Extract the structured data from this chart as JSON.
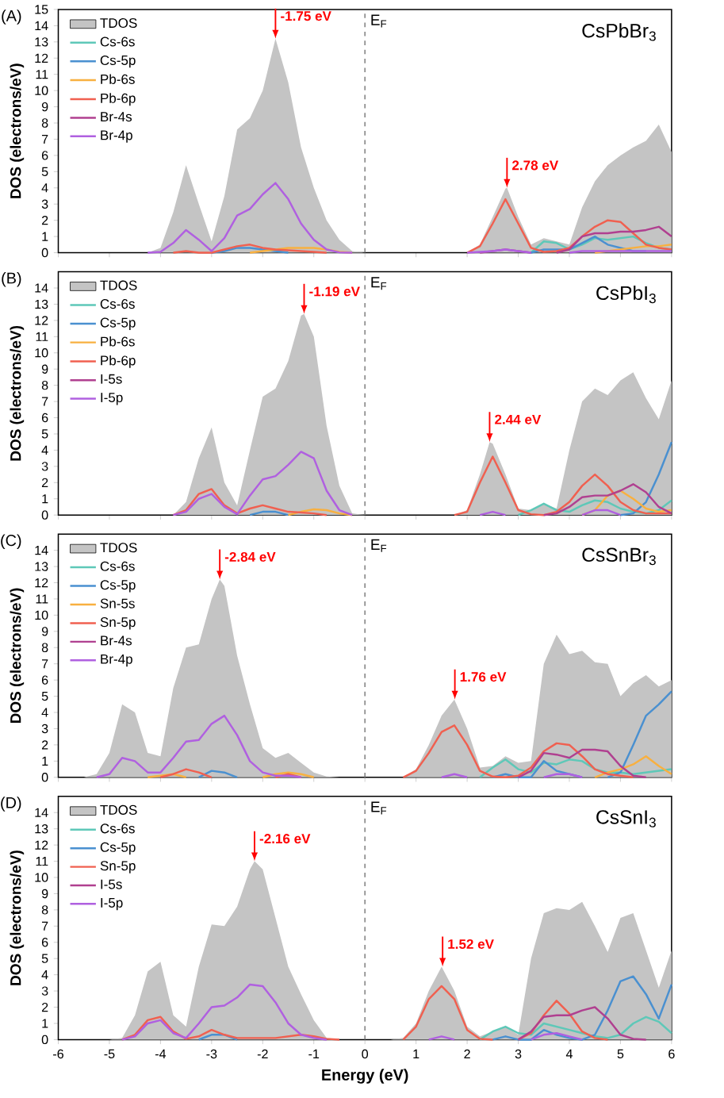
{
  "chart_data": [
    {
      "type": "line",
      "title": "CsPbBr$_{3}$",
      "ylabel": "DOS (electrons/eV)",
      "annotations": [
        "(A)",
        {
          "text": "-1.75 eV",
          "x": -1.75,
          "y": 13.2
        },
        {
          "text": "2.78 eV",
          "x": 2.78,
          "y": 4.0
        }
      ],
      "ref_lines": [
        {
          "axis": "x",
          "value": 0,
          "label": "E$_{F}$",
          "line_style": "dashed",
          "color": "#808080"
        }
      ],
      "xlim": [
        -6,
        6
      ],
      "ylim": [
        0,
        15
      ],
      "xticks": [
        -6,
        -5,
        -4,
        -3,
        -2,
        -1,
        0,
        1,
        2,
        3,
        4,
        5,
        6
      ],
      "yticks": [
        0,
        1,
        2,
        3,
        4,
        5,
        6,
        7,
        8,
        9,
        10,
        11,
        12,
        13,
        14,
        15
      ],
      "tick_labels": "y",
      "legend": "top left",
      "x": [
        -4.25,
        -4,
        -3.75,
        -3.5,
        -3.25,
        -3,
        -2.75,
        -2.5,
        -2.25,
        -2,
        -1.75,
        -1.5,
        -1.25,
        -1,
        -0.75,
        -0.5,
        -0.25,
        0,
        0.25,
        0.5,
        0.75,
        1,
        1.25,
        1.5,
        1.75,
        2,
        2.25,
        2.5,
        2.75,
        3,
        3.25,
        3.5,
        3.75,
        4,
        4.25,
        4.5,
        4.75,
        5,
        5.25,
        5.5,
        5.75,
        6
      ],
      "series": [
        {
          "name": "TDOS",
          "type": "area",
          "color": "#c4c4c4",
          "x": [
            -6,
            -5.75,
            -5.5,
            -5.25,
            -5,
            -4.75,
            -4.5,
            -4.25,
            -4,
            -3.75,
            -3.5,
            -3.25,
            -3,
            -2.75,
            -2.5,
            -2.25,
            -2,
            -1.75,
            -1.5,
            -1.25,
            -1,
            -0.75,
            -0.5,
            -0.25,
            0,
            0.25,
            0.5,
            0.75,
            1,
            1.25,
            1.5,
            1.75,
            2,
            2.25,
            2.5,
            2.75,
            2.78,
            3,
            3.25,
            3.5,
            3.75,
            4,
            4.25,
            4.5,
            4.75,
            5,
            5.25,
            5.5,
            5.75,
            6
          ],
          "values": [
            0,
            0,
            0,
            0,
            0,
            0,
            0,
            0,
            0.3,
            2.5,
            5.4,
            3.0,
            0.7,
            3.5,
            7.6,
            8.3,
            10.0,
            13.2,
            10.5,
            6.5,
            4.0,
            2.0,
            0.8,
            0.1,
            0,
            0,
            0,
            0,
            0,
            0,
            0,
            0,
            0,
            0.5,
            2.2,
            3.95,
            4.0,
            2.2,
            0.5,
            0.9,
            0.7,
            0.5,
            2.8,
            4.4,
            5.4,
            6.0,
            6.5,
            6.9,
            7.9,
            6.2
          ]
        },
        {
          "name": "Cs-6s",
          "color": "#5ec8b8",
          "values": [
            null,
            null,
            null,
            null,
            null,
            null,
            null,
            null,
            null,
            null,
            null,
            null,
            null,
            null,
            null,
            null,
            null,
            null,
            null,
            null,
            null,
            null,
            null,
            null,
            null,
            null,
            null,
            null,
            null,
            null,
            0,
            0.7,
            0.6,
            0.2,
            0.5,
            0.9,
            0.8,
            0.9,
            1.0,
            0.6,
            0.3,
            0.2
          ]
        },
        {
          "name": "Cs-5p",
          "color": "#4a90d0",
          "values": [
            null,
            null,
            null,
            null,
            null,
            0,
            0.1,
            0.3,
            0.3,
            0.2,
            0.1,
            0,
            null,
            null,
            null,
            null,
            null,
            null,
            null,
            null,
            null,
            null,
            null,
            null,
            null,
            null,
            null,
            null,
            null,
            null,
            0,
            0.2,
            0.2,
            0.2,
            0.6,
            1.0,
            0.5,
            0.3,
            0.1,
            0.1,
            null,
            null
          ]
        },
        {
          "name": "Pb-6s",
          "color": "#f8b040",
          "values": [
            null,
            null,
            null,
            null,
            null,
            null,
            null,
            null,
            0,
            0.1,
            0.2,
            0.3,
            0.3,
            0.3,
            0.2,
            0.05,
            0,
            null,
            null,
            null,
            null,
            null,
            null,
            null,
            null,
            null,
            null,
            null,
            null,
            null,
            null,
            null,
            null,
            null,
            null,
            0,
            0.1,
            0.2,
            0.3,
            0.4,
            0.4,
            0.5
          ]
        },
        {
          "name": "Pb-6p",
          "color": "#f06050",
          "values": [
            null,
            null,
            0,
            0.1,
            0,
            0,
            0.2,
            0.4,
            0.5,
            0.3,
            0.2,
            0.15,
            0.1,
            0.05,
            0,
            null,
            null,
            null,
            null,
            null,
            null,
            null,
            null,
            null,
            null,
            0,
            0.4,
            1.8,
            3.3,
            1.8,
            0.3,
            0.05,
            0.1,
            0.3,
            1.0,
            1.6,
            2.0,
            1.9,
            1.2,
            0.5,
            0.3,
            0.2
          ]
        },
        {
          "name": "Br-4s",
          "color": "#b04090",
          "values": [
            null,
            null,
            null,
            null,
            null,
            null,
            null,
            null,
            null,
            null,
            null,
            null,
            null,
            null,
            null,
            null,
            null,
            null,
            null,
            null,
            null,
            null,
            null,
            null,
            null,
            null,
            0,
            0.1,
            0.2,
            0.1,
            0,
            null,
            0,
            0.2,
            1.0,
            1.2,
            1.2,
            1.3,
            1.3,
            1.4,
            1.6,
            1.0
          ]
        },
        {
          "name": "Br-4p",
          "color": "#b060e0",
          "values": [
            0,
            0.05,
            0.6,
            1.4,
            0.8,
            0.1,
            0.9,
            2.3,
            2.7,
            3.6,
            4.3,
            3.3,
            1.8,
            0.8,
            0.2,
            0.02,
            0,
            null,
            null,
            null,
            null,
            null,
            null,
            null,
            null,
            0,
            0.05,
            0.1,
            0.2,
            0.1,
            0,
            null,
            null,
            0,
            0.1,
            0.1,
            0.1,
            0.1,
            0.1,
            0.1,
            0.1,
            0.1
          ]
        }
      ]
    },
    {
      "type": "line",
      "title": "CsPbI$_{3}$",
      "ylabel": "DOS (electrons/eV)",
      "annotations": [
        "(B)",
        {
          "text": "-1.19 eV",
          "x": -1.19,
          "y": 12.4
        },
        {
          "text": "2.44 eV",
          "x": 2.44,
          "y": 4.5
        }
      ],
      "ref_lines": [
        {
          "axis": "x",
          "value": 0,
          "label": "E$_{F}$",
          "line_style": "dashed",
          "color": "#808080"
        }
      ],
      "xlim": [
        -6,
        6
      ],
      "ylim": [
        0,
        15
      ],
      "xticks": [
        -6,
        -5,
        -4,
        -3,
        -2,
        -1,
        0,
        1,
        2,
        3,
        4,
        5,
        6
      ],
      "yticks": [
        0,
        1,
        2,
        3,
        4,
        5,
        6,
        7,
        8,
        9,
        10,
        11,
        12,
        13,
        14
      ],
      "tick_labels": "y",
      "legend": "top left",
      "x": [
        -3.75,
        -3.5,
        -3.25,
        -3,
        -2.75,
        -2.5,
        -2.25,
        -2,
        -1.75,
        -1.5,
        -1.25,
        -1,
        -0.75,
        -0.5,
        -0.25,
        0,
        0.25,
        0.5,
        0.75,
        1,
        1.25,
        1.5,
        1.75,
        2,
        2.25,
        2.5,
        2.75,
        3,
        3.25,
        3.5,
        3.75,
        4,
        4.25,
        4.5,
        4.75,
        5,
        5.25,
        5.5,
        5.75,
        6
      ],
      "series": [
        {
          "name": "TDOS",
          "type": "area",
          "color": "#c4c4c4",
          "x": [
            -6,
            -5.75,
            -5.5,
            -5.25,
            -5,
            -4.75,
            -4.5,
            -4.25,
            -4,
            -3.75,
            -3.5,
            -3.25,
            -3,
            -2.75,
            -2.5,
            -2.25,
            -2,
            -1.75,
            -1.5,
            -1.25,
            -1.19,
            -1,
            -0.75,
            -0.5,
            -0.25,
            0,
            0.25,
            0.5,
            0.75,
            1,
            1.25,
            1.5,
            1.75,
            2,
            2.25,
            2.44,
            2.5,
            2.75,
            3,
            3.25,
            3.5,
            3.75,
            4,
            4.25,
            4.5,
            4.75,
            5,
            5.25,
            5.5,
            5.75,
            6
          ],
          "values": [
            0,
            0,
            0,
            0,
            0,
            0,
            0,
            0,
            0,
            0,
            0.8,
            3.5,
            5.4,
            2.0,
            0.6,
            4.0,
            7.3,
            7.8,
            9.5,
            12.3,
            12.4,
            11.0,
            5.5,
            1.8,
            0.1,
            0,
            0,
            0,
            0,
            0,
            0,
            0,
            0,
            0.3,
            2.5,
            4.5,
            4.4,
            2.5,
            0.4,
            0.3,
            0.7,
            0.4,
            4.0,
            7.0,
            7.8,
            7.4,
            8.3,
            8.8,
            7.2,
            5.9,
            8.3
          ]
        },
        {
          "name": "Cs-6s",
          "color": "#5ec8b8",
          "values": [
            null,
            null,
            null,
            null,
            null,
            null,
            null,
            null,
            null,
            null,
            null,
            null,
            null,
            null,
            null,
            null,
            null,
            null,
            null,
            null,
            null,
            null,
            null,
            null,
            null,
            null,
            null,
            0,
            0.3,
            0.7,
            0.3,
            0.2,
            0.6,
            0.9,
            0.8,
            0.4,
            0.2,
            0.1,
            0.3,
            0.9
          ]
        },
        {
          "name": "Cs-5p",
          "color": "#4a90d0",
          "values": [
            null,
            null,
            null,
            null,
            null,
            null,
            0,
            0.2,
            0.2,
            0,
            null,
            null,
            null,
            null,
            null,
            null,
            null,
            null,
            null,
            null,
            null,
            null,
            null,
            null,
            null,
            null,
            null,
            null,
            null,
            null,
            null,
            null,
            null,
            null,
            null,
            0,
            0.1,
            0.8,
            2.5,
            4.5
          ]
        },
        {
          "name": "Pb-6s",
          "color": "#f8b040",
          "values": [
            null,
            null,
            null,
            null,
            null,
            null,
            null,
            null,
            null,
            0,
            0.2,
            0.35,
            0.3,
            0.1,
            0,
            null,
            null,
            null,
            null,
            null,
            null,
            null,
            null,
            null,
            null,
            null,
            null,
            null,
            null,
            null,
            null,
            null,
            0,
            0.3,
            1.2,
            1.5,
            1.0,
            0.4,
            0.2,
            0.3
          ]
        },
        {
          "name": "Pb-6p",
          "color": "#f06050",
          "values": [
            0,
            0.3,
            1.3,
            1.6,
            0.6,
            0.1,
            0.4,
            0.6,
            0.4,
            0.2,
            0.15,
            0.1,
            0,
            null,
            null,
            null,
            null,
            null,
            null,
            null,
            null,
            null,
            0,
            0.2,
            2.0,
            3.6,
            2.0,
            0.3,
            0.05,
            0,
            0.2,
            0.8,
            1.8,
            2.5,
            1.8,
            0.8,
            0.3,
            0.1,
            0.1,
            0.1
          ]
        },
        {
          "name": "I-5s",
          "color": "#b04090",
          "values": [
            null,
            null,
            null,
            null,
            null,
            null,
            null,
            null,
            null,
            null,
            null,
            null,
            null,
            null,
            null,
            null,
            null,
            null,
            null,
            null,
            null,
            null,
            null,
            null,
            null,
            null,
            null,
            null,
            null,
            0,
            0.1,
            0.5,
            1.1,
            1.2,
            1.2,
            1.5,
            1.9,
            1.4,
            0.5,
            0.1
          ]
        },
        {
          "name": "I-5p",
          "color": "#b060e0",
          "values": [
            0,
            0.2,
            1.0,
            1.3,
            0.5,
            0.05,
            1.2,
            2.2,
            2.4,
            3.1,
            3.9,
            3.5,
            1.5,
            0.3,
            0,
            null,
            null,
            null,
            null,
            null,
            null,
            null,
            null,
            null,
            0,
            0.2,
            0,
            null,
            null,
            null,
            null,
            null,
            0,
            0.3,
            0.3,
            0,
            null,
            null,
            null,
            null
          ]
        }
      ]
    },
    {
      "type": "line",
      "title": "CsSnBr$_{3}$",
      "ylabel": "DOS (electrons/eV)",
      "annotations": [
        "(C)",
        {
          "text": "-2.84 eV",
          "x": -2.84,
          "y": 12.2
        },
        {
          "text": "1.76 eV",
          "x": 1.76,
          "y": 4.8
        }
      ],
      "ref_lines": [
        {
          "axis": "x",
          "value": 0,
          "label": "E$_{F}$",
          "line_style": "dashed",
          "color": "#808080"
        }
      ],
      "xlim": [
        -6,
        6
      ],
      "ylim": [
        0,
        15
      ],
      "xticks": [
        -6,
        -5,
        -4,
        -3,
        -2,
        -1,
        0,
        1,
        2,
        3,
        4,
        5,
        6
      ],
      "yticks": [
        0,
        1,
        2,
        3,
        4,
        5,
        6,
        7,
        8,
        9,
        10,
        11,
        12,
        13,
        14
      ],
      "tick_labels": "y",
      "legend": "top left",
      "x": [
        -5.25,
        -5,
        -4.75,
        -4.5,
        -4.25,
        -4,
        -3.75,
        -3.5,
        -3.25,
        -3,
        -2.75,
        -2.5,
        -2.25,
        -2,
        -1.75,
        -1.5,
        -1.25,
        -1,
        -0.75,
        -0.5,
        -0.25,
        0,
        0.25,
        0.5,
        0.75,
        1,
        1.25,
        1.5,
        1.75,
        2,
        2.25,
        2.5,
        2.75,
        3,
        3.25,
        3.5,
        3.75,
        4,
        4.25,
        4.5,
        4.75,
        5,
        5.25,
        5.5,
        5.75,
        6
      ],
      "series": [
        {
          "name": "TDOS",
          "type": "area",
          "color": "#c4c4c4",
          "x": [
            -6,
            -5.75,
            -5.5,
            -5.25,
            -5,
            -4.75,
            -4.5,
            -4.25,
            -4,
            -3.75,
            -3.5,
            -3.25,
            -3,
            -2.84,
            -2.75,
            -2.5,
            -2.25,
            -2,
            -1.75,
            -1.5,
            -1.25,
            -1,
            -0.75,
            -0.5,
            -0.25,
            0,
            0.25,
            0.5,
            0.75,
            1,
            1.25,
            1.5,
            1.75,
            2,
            2.25,
            2.5,
            2.75,
            3,
            3.25,
            3.5,
            3.75,
            4,
            4.25,
            4.5,
            4.75,
            5,
            5.25,
            5.5,
            5.75,
            6
          ],
          "values": [
            0,
            0,
            0,
            0.2,
            1.5,
            4.5,
            4.0,
            1.5,
            1.3,
            5.5,
            8.0,
            8.2,
            11.0,
            12.2,
            11.8,
            7.5,
            4.5,
            1.8,
            1.2,
            1.5,
            0.9,
            0.3,
            0.05,
            0,
            0,
            0,
            0,
            0,
            0,
            0.5,
            2.0,
            3.8,
            4.8,
            3.0,
            0.6,
            0.7,
            1.3,
            0.9,
            1.0,
            7.0,
            8.8,
            7.6,
            7.8,
            7.1,
            7.0,
            5.0,
            5.8,
            6.3,
            5.6,
            6.0
          ]
        },
        {
          "name": "Cs-6s",
          "color": "#5ec8b8",
          "values": [
            null,
            null,
            null,
            null,
            null,
            null,
            null,
            null,
            null,
            null,
            null,
            null,
            null,
            null,
            null,
            null,
            null,
            null,
            null,
            null,
            null,
            null,
            null,
            null,
            null,
            null,
            null,
            null,
            null,
            null,
            0,
            0.6,
            1.1,
            0.5,
            0.3,
            0.9,
            0.8,
            1.1,
            1.0,
            0.5,
            0.3,
            0.3,
            0.2,
            0.3,
            0.4,
            0.5
          ]
        },
        {
          "name": "Cs-5p",
          "color": "#4a90d0",
          "values": [
            null,
            null,
            null,
            null,
            null,
            null,
            null,
            null,
            0,
            0.4,
            0.3,
            0,
            null,
            null,
            null,
            null,
            null,
            null,
            null,
            null,
            null,
            null,
            null,
            null,
            null,
            null,
            null,
            null,
            null,
            null,
            null,
            0,
            0.2,
            0,
            0,
            1.0,
            0.4,
            0.2,
            0,
            null,
            0,
            0.3,
            2.0,
            3.8,
            4.5,
            5.3
          ]
        },
        {
          "name": "Sn-5s",
          "color": "#f8b040",
          "values": [
            null,
            null,
            null,
            null,
            0,
            0.1,
            0.2,
            0,
            null,
            null,
            null,
            null,
            null,
            0,
            0.2,
            0.3,
            0.2,
            0,
            null,
            null,
            null,
            null,
            null,
            null,
            null,
            null,
            null,
            null,
            null,
            null,
            null,
            null,
            null,
            null,
            null,
            null,
            null,
            null,
            null,
            0,
            0.3,
            0.5,
            0.8,
            1.3,
            0.7,
            0.2
          ]
        },
        {
          "name": "Sn-5p",
          "color": "#f06050",
          "values": [
            null,
            null,
            null,
            null,
            null,
            0,
            0.2,
            0.5,
            0.3,
            0,
            null,
            null,
            null,
            null,
            0,
            0.2,
            0,
            null,
            null,
            null,
            null,
            null,
            null,
            null,
            0,
            0.4,
            1.5,
            2.8,
            3.2,
            2.0,
            0.4,
            0.05,
            0,
            0.1,
            0.6,
            1.6,
            2.1,
            2.0,
            1.3,
            0.5,
            0.2,
            0.1,
            0,
            null,
            null,
            null
          ]
        },
        {
          "name": "Br-4s",
          "color": "#b04090",
          "values": [
            null,
            null,
            null,
            null,
            null,
            null,
            null,
            null,
            null,
            null,
            null,
            null,
            null,
            null,
            null,
            null,
            null,
            null,
            null,
            null,
            null,
            null,
            null,
            null,
            null,
            null,
            null,
            null,
            null,
            null,
            null,
            null,
            null,
            0,
            0.4,
            1.5,
            1.4,
            1.2,
            1.7,
            1.7,
            1.6,
            0.7,
            0.1,
            0,
            null,
            null
          ]
        },
        {
          "name": "Br-4p",
          "color": "#b060e0",
          "values": [
            0,
            0.2,
            1.2,
            1.0,
            0.3,
            0.3,
            1.2,
            2.2,
            2.3,
            3.3,
            3.8,
            2.6,
            1.0,
            0.3,
            0.1,
            0.1,
            0,
            null,
            null,
            null,
            null,
            null,
            null,
            null,
            null,
            null,
            null,
            0,
            0.2,
            0,
            null,
            null,
            null,
            null,
            null,
            0,
            0.2,
            0.2,
            0,
            null,
            null,
            null,
            null,
            null,
            null,
            null
          ]
        }
      ]
    },
    {
      "type": "line",
      "title": "CsSnI$_{3}$",
      "ylabel": "DOS (electrons/eV)",
      "xlabel": "Energy (eV)",
      "annotations": [
        "(D)",
        {
          "text": "-2.16 eV",
          "x": -2.16,
          "y": 11.0
        },
        {
          "text": "1.52 eV",
          "x": 1.52,
          "y": 4.5
        }
      ],
      "ref_lines": [
        {
          "axis": "x",
          "value": 0,
          "label": "E$_{F}$",
          "line_style": "dashed",
          "color": "#808080"
        }
      ],
      "xlim": [
        -6,
        6
      ],
      "ylim": [
        0,
        15
      ],
      "xticks": [
        -6,
        -5,
        -4,
        -3,
        -2,
        -1,
        0,
        1,
        2,
        3,
        4,
        5,
        6
      ],
      "yticks": [
        0,
        1,
        2,
        3,
        4,
        5,
        6,
        7,
        8,
        9,
        10,
        11,
        12,
        13,
        14
      ],
      "legend": "top left",
      "x": [
        -4.75,
        -4.5,
        -4.25,
        -4,
        -3.75,
        -3.5,
        -3.25,
        -3,
        -2.75,
        -2.5,
        -2.25,
        -2,
        -1.75,
        -1.5,
        -1.25,
        -1,
        -0.75,
        -0.5,
        -0.25,
        0,
        0.25,
        0.5,
        0.75,
        1,
        1.25,
        1.5,
        1.75,
        2,
        2.25,
        2.5,
        2.75,
        3,
        3.25,
        3.5,
        3.75,
        4,
        4.25,
        4.5,
        4.75,
        5,
        5.25,
        5.5,
        5.75,
        6
      ],
      "series": [
        {
          "name": "TDOS",
          "type": "area",
          "color": "#c4c4c4",
          "x": [
            -6,
            -5.75,
            -5.5,
            -5.25,
            -5,
            -4.75,
            -4.5,
            -4.25,
            -4,
            -3.75,
            -3.5,
            -3.25,
            -3,
            -2.75,
            -2.5,
            -2.25,
            -2.16,
            -2,
            -1.75,
            -1.5,
            -1.25,
            -1,
            -0.75,
            -0.5,
            -0.25,
            0,
            0.25,
            0.5,
            0.75,
            1,
            1.25,
            1.5,
            1.75,
            2,
            2.25,
            2.5,
            2.75,
            3,
            3.25,
            3.5,
            3.75,
            4,
            4.25,
            4.5,
            4.75,
            5,
            5.25,
            5.5,
            5.75,
            6
          ],
          "values": [
            0,
            0,
            0,
            0,
            0,
            0.1,
            1.5,
            4.2,
            4.8,
            1.5,
            0.8,
            4.5,
            7.1,
            7.0,
            8.2,
            10.5,
            11.0,
            10.5,
            7.5,
            4.5,
            2.8,
            1.2,
            0.1,
            0,
            0,
            0,
            0,
            0,
            0.1,
            1.0,
            3.0,
            4.5,
            3.0,
            0.8,
            0.2,
            0.5,
            0.8,
            0.3,
            5.0,
            7.8,
            8.1,
            8.0,
            8.5,
            7.0,
            5.4,
            7.5,
            7.8,
            5.5,
            3.2,
            5.5
          ]
        },
        {
          "name": "Cs-6s",
          "color": "#5ec8b8",
          "values": [
            null,
            null,
            null,
            null,
            null,
            null,
            null,
            null,
            null,
            null,
            null,
            null,
            null,
            null,
            null,
            null,
            null,
            null,
            null,
            null,
            null,
            null,
            null,
            null,
            null,
            null,
            null,
            null,
            0,
            0.5,
            0.8,
            0.4,
            0.3,
            1.0,
            0.8,
            0.6,
            0.4,
            0.2,
            0.1,
            0.3,
            1.0,
            1.4,
            1.1,
            0.4
          ]
        },
        {
          "name": "Cs-5p",
          "color": "#4a90d0",
          "values": [
            null,
            null,
            null,
            null,
            null,
            null,
            0,
            0.3,
            0.3,
            0,
            null,
            null,
            null,
            null,
            null,
            null,
            null,
            null,
            null,
            null,
            null,
            null,
            null,
            null,
            null,
            null,
            null,
            null,
            null,
            0,
            0.2,
            0,
            0,
            0.6,
            0.3,
            0.1,
            0,
            0.3,
            1.8,
            3.6,
            3.9,
            2.8,
            1.3,
            3.4
          ]
        },
        {
          "name": "Sn-5p",
          "color": "#f06050",
          "values": [
            0,
            0.3,
            1.2,
            1.4,
            0.5,
            0.05,
            0.2,
            0.6,
            0.3,
            0.1,
            0.1,
            0.1,
            0.1,
            0.2,
            0.3,
            0.2,
            0.05,
            0,
            null,
            null,
            null,
            null,
            0,
            0.8,
            2.5,
            3.3,
            2.5,
            0.6,
            0.05,
            0,
            null,
            0,
            0.4,
            1.5,
            2.4,
            1.6,
            0.5,
            0.1,
            0,
            null,
            null,
            null,
            null,
            null
          ]
        },
        {
          "name": "I-5s",
          "color": "#b04090",
          "values": [
            null,
            null,
            null,
            null,
            null,
            null,
            null,
            null,
            null,
            null,
            null,
            null,
            null,
            null,
            null,
            null,
            null,
            null,
            null,
            null,
            null,
            null,
            null,
            null,
            null,
            null,
            null,
            null,
            null,
            null,
            null,
            0,
            0.5,
            1.4,
            1.5,
            1.5,
            1.8,
            2.0,
            1.3,
            0.3,
            0.05,
            0,
            null,
            null
          ]
        },
        {
          "name": "I-5p",
          "color": "#b060e0",
          "values": [
            0,
            0.2,
            1.0,
            1.2,
            0.4,
            0.1,
            1.0,
            2.0,
            2.1,
            2.6,
            3.4,
            3.3,
            2.3,
            1.0,
            0.3,
            0.1,
            0,
            null,
            null,
            null,
            null,
            null,
            null,
            null,
            0,
            0.2,
            0,
            null,
            null,
            null,
            null,
            null,
            0,
            0.3,
            0.4,
            0.2,
            0,
            null,
            null,
            null,
            null,
            null,
            null,
            null
          ]
        }
      ]
    }
  ]
}
